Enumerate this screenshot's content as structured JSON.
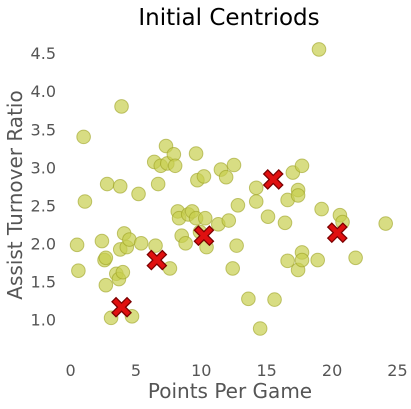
{
  "chart_data": {
    "type": "scatter",
    "title": "Initial Centriods",
    "xlabel": "Points Per Game",
    "ylabel": "Assist Turnover Ratio",
    "xlim": [
      -0.5,
      25.5
    ],
    "ylim": [
      0.65,
      4.7
    ],
    "xticks": [
      "0",
      "5",
      "10",
      "15",
      "20",
      "25"
    ],
    "yticks": [
      "1.0",
      "1.5",
      "2.0",
      "2.5",
      "3.0",
      "3.5",
      "4.0",
      "4.5"
    ],
    "grid": false,
    "colors": {
      "points": "#c8cf4e",
      "points_edge": "#9da123",
      "centroid": "#e01010",
      "centroid_edge": "#7a0000",
      "text": "#555555"
    },
    "series": [
      {
        "marker": "circle",
        "points": [
          [
            0.5,
            1.98
          ],
          [
            0.6,
            1.64
          ],
          [
            1.0,
            3.4
          ],
          [
            1.1,
            2.55
          ],
          [
            2.4,
            2.03
          ],
          [
            2.6,
            1.78
          ],
          [
            2.7,
            1.81
          ],
          [
            2.7,
            1.45
          ],
          [
            2.8,
            2.78
          ],
          [
            3.1,
            1.02
          ],
          [
            3.5,
            1.6
          ],
          [
            3.7,
            1.53
          ],
          [
            3.8,
            2.75
          ],
          [
            3.8,
            1.92
          ],
          [
            3.9,
            3.8
          ],
          [
            4.0,
            1.62
          ],
          [
            4.1,
            2.13
          ],
          [
            4.3,
            1.95
          ],
          [
            4.5,
            2.05
          ],
          [
            4.7,
            1.04
          ],
          [
            5.2,
            2.65
          ],
          [
            5.4,
            2.0
          ],
          [
            6.4,
            3.07
          ],
          [
            6.5,
            1.97
          ],
          [
            6.7,
            2.78
          ],
          [
            6.9,
            3.02
          ],
          [
            7.3,
            3.28
          ],
          [
            7.4,
            3.05
          ],
          [
            7.6,
            1.67
          ],
          [
            7.9,
            3.17
          ],
          [
            8.0,
            3.02
          ],
          [
            8.2,
            2.42
          ],
          [
            8.3,
            2.33
          ],
          [
            8.5,
            2.1
          ],
          [
            8.8,
            2.0
          ],
          [
            9.0,
            2.38
          ],
          [
            9.3,
            2.42
          ],
          [
            9.6,
            3.18
          ],
          [
            9.6,
            2.33
          ],
          [
            9.7,
            2.83
          ],
          [
            9.9,
            2.15
          ],
          [
            10.2,
            2.88
          ],
          [
            10.3,
            2.33
          ],
          [
            10.4,
            1.95
          ],
          [
            11.3,
            2.25
          ],
          [
            11.5,
            2.97
          ],
          [
            11.9,
            2.87
          ],
          [
            12.1,
            2.3
          ],
          [
            12.4,
            1.67
          ],
          [
            12.5,
            3.03
          ],
          [
            12.7,
            1.97
          ],
          [
            12.8,
            2.5
          ],
          [
            13.6,
            1.27
          ],
          [
            14.2,
            2.55
          ],
          [
            14.2,
            2.73
          ],
          [
            14.5,
            0.88
          ],
          [
            15.1,
            2.35
          ],
          [
            15.6,
            1.26
          ],
          [
            16.4,
            2.27
          ],
          [
            16.6,
            2.57
          ],
          [
            16.6,
            1.77
          ],
          [
            17.0,
            2.93
          ],
          [
            17.4,
            2.7
          ],
          [
            17.4,
            2.63
          ],
          [
            17.4,
            1.65
          ],
          [
            17.7,
            3.02
          ],
          [
            17.7,
            1.88
          ],
          [
            17.7,
            1.78
          ],
          [
            18.9,
            1.78
          ],
          [
            19.0,
            4.55
          ],
          [
            19.2,
            2.45
          ],
          [
            20.6,
            2.37
          ],
          [
            20.8,
            2.28
          ],
          [
            21.8,
            1.81
          ],
          [
            24.1,
            2.26
          ]
        ]
      },
      {
        "marker": "x",
        "points": [
          [
            3.9,
            1.16
          ],
          [
            6.6,
            1.78
          ],
          [
            10.2,
            2.1
          ],
          [
            15.5,
            2.84
          ],
          [
            20.4,
            2.14
          ]
        ]
      }
    ]
  }
}
